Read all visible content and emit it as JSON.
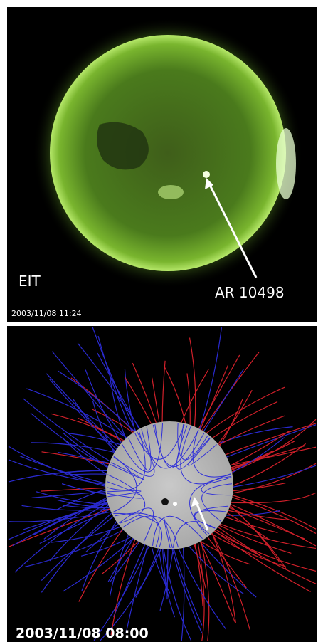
{
  "top_panel": {
    "instrument": "EIT",
    "region": "AR 10498",
    "timestamp": "2003/11/08 11:24"
  },
  "bottom_panel": {
    "timestamp": "2003/11/08 08:00"
  }
}
